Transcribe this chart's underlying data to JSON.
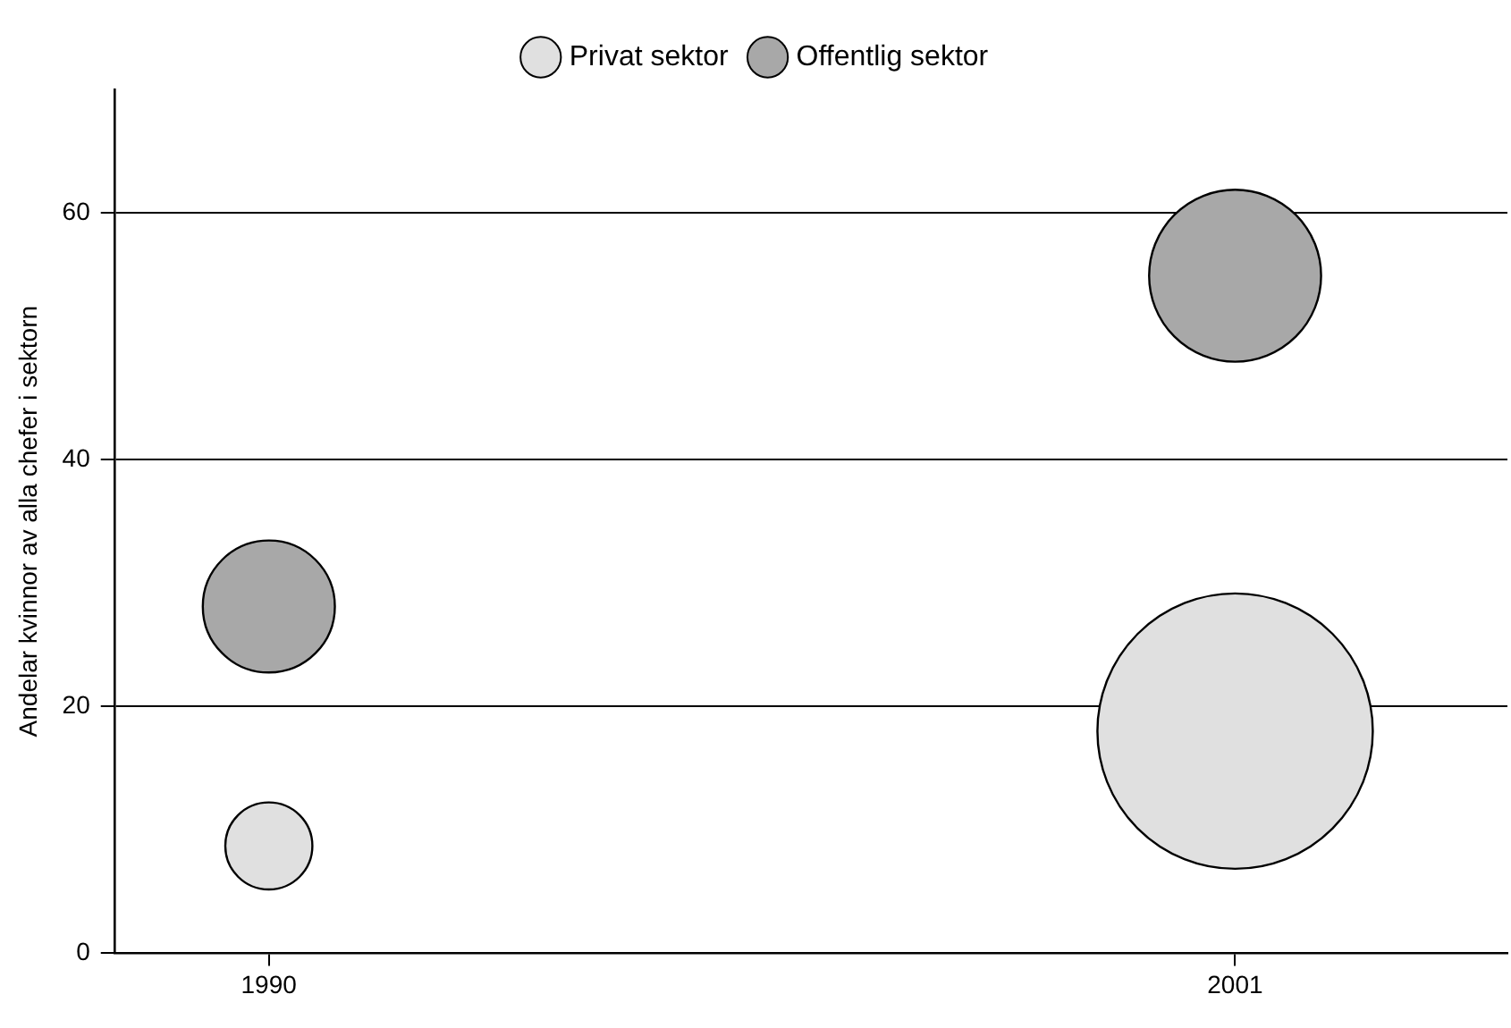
{
  "chart_data": {
    "type": "bubble",
    "ylabel": "Andelar kvinnor av alla chefer i sektorn",
    "x": [
      1990,
      2001
    ],
    "xlim": [
      1988.25,
      2004.1
    ],
    "xticks": [
      1990,
      2001
    ],
    "ylim": [
      0,
      70
    ],
    "yticks": [
      0,
      20,
      40,
      60
    ],
    "grid": "y",
    "legend": "top",
    "relative": false,
    "series": [
      {
        "name": "Privat sektor",
        "color": "#e0e0e0",
        "values": [
          8.7,
          18.0
        ],
        "sizes": [
          0.1,
          1
        ]
      },
      {
        "name": "Offentlig sektor",
        "color": "#a8a8a8",
        "values": [
          28.1,
          54.9
        ],
        "sizes": [
          0.23,
          0.39
        ]
      }
    ]
  }
}
